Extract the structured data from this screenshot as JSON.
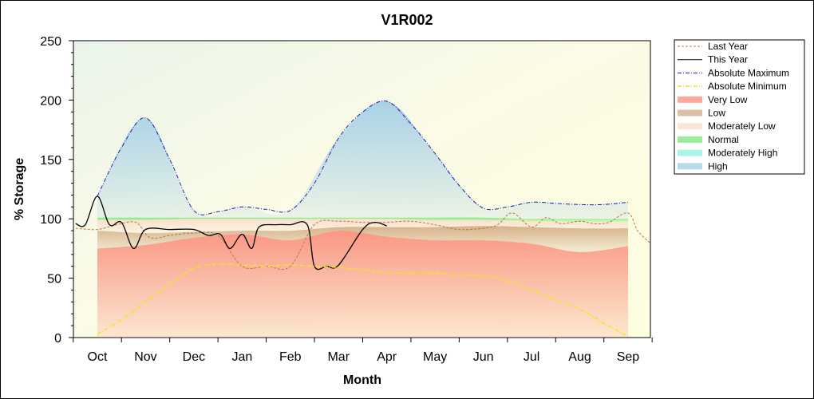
{
  "chart_data": {
    "type": "area",
    "title": "V1R002",
    "xlabel": "Month",
    "ylabel": "% Storage",
    "ylim": [
      0,
      250
    ],
    "yticks": [
      0,
      50,
      100,
      150,
      200,
      250
    ],
    "categories": [
      "Oct",
      "Nov",
      "Dec",
      "Jan",
      "Feb",
      "Mar",
      "Apr",
      "May",
      "Jun",
      "Jul",
      "Aug",
      "Sep"
    ],
    "grid": false,
    "legend_position": "right",
    "band_x": [
      0,
      1,
      2,
      3,
      4,
      5,
      6,
      7,
      8,
      9,
      10,
      11
    ],
    "bands": [
      {
        "name": "Very Low",
        "color": "#fa8c78",
        "lower": [
          0,
          0,
          0,
          0,
          0,
          0,
          0,
          0,
          0,
          0,
          0,
          0
        ],
        "upper": [
          75,
          78,
          84,
          87,
          82,
          90,
          85,
          82,
          82,
          79,
          72,
          77
        ]
      },
      {
        "name": "Low",
        "color": "#d2aa82",
        "lower": [
          75,
          78,
          84,
          87,
          82,
          90,
          85,
          82,
          82,
          79,
          72,
          77
        ],
        "upper": [
          90,
          88,
          89,
          90,
          90,
          93,
          93,
          93,
          94,
          93,
          92,
          92
        ]
      },
      {
        "name": "Moderately Low",
        "color": "#fadcc8",
        "lower": [
          90,
          88,
          89,
          90,
          90,
          93,
          93,
          93,
          94,
          93,
          92,
          92
        ],
        "upper": [
          99,
          99,
          100,
          100,
          100,
          100,
          100,
          99,
          99,
          98,
          97,
          97
        ]
      },
      {
        "name": "Normal",
        "color": "#78e678",
        "lower": [
          99,
          99,
          100,
          100,
          100,
          100,
          100,
          99,
          99,
          98,
          97,
          97
        ],
        "upper": [
          101,
          101,
          101,
          101,
          101,
          101,
          101,
          101,
          101,
          100,
          100,
          100
        ]
      },
      {
        "name": "Moderately High",
        "color": "#8cf0dc",
        "lower": [
          101,
          101,
          101,
          101,
          101,
          101,
          101,
          101,
          101,
          100,
          100,
          100
        ],
        "upper": [
          101,
          101,
          101,
          101,
          101,
          101,
          101,
          101,
          101,
          100,
          100,
          100
        ]
      },
      {
        "name": "High",
        "color": "#a0cde6",
        "lower": [
          101,
          101,
          101,
          101,
          101,
          101,
          101,
          101,
          101,
          100,
          100,
          100
        ],
        "upper": [
          119,
          185,
          107,
          110,
          107,
          168,
          199,
          155,
          109,
          114,
          112,
          114
        ]
      }
    ],
    "series": [
      {
        "name": "Last Year",
        "color": "#b4783c",
        "style": "dashed",
        "x": [
          -0.45,
          0,
          0.4,
          0.8,
          1.1,
          1.5,
          2,
          2.5,
          3,
          3.5,
          4,
          4.5,
          5,
          5.5,
          6,
          6.5,
          7,
          7.5,
          8,
          8.3,
          8.6,
          9,
          9.3,
          9.6,
          10,
          10.3,
          10.6,
          11,
          11.2,
          11.45
        ],
        "y": [
          92,
          91,
          95,
          97,
          84,
          86,
          88,
          86,
          60,
          60,
          60,
          95,
          98,
          97,
          97,
          98,
          95,
          91,
          92,
          95,
          105,
          93,
          101,
          96,
          98,
          96,
          97,
          105,
          90,
          80
        ]
      },
      {
        "name": "This Year",
        "color": "#000000",
        "style": "solid",
        "x": [
          -0.45,
          -0.25,
          0,
          0.25,
          0.5,
          0.75,
          1,
          1.5,
          2,
          2.3,
          2.55,
          2.75,
          3,
          3.2,
          3.35,
          3.7,
          4,
          4.35,
          4.5,
          4.75,
          5,
          5.5,
          5.75,
          6
        ],
        "y": [
          96,
          95,
          119,
          95,
          97,
          75,
          91,
          91,
          91,
          86,
          87,
          75,
          87,
          75,
          93,
          95,
          95,
          95,
          60,
          60,
          61,
          91,
          97,
          94
        ]
      },
      {
        "name": "Absolute Maximum",
        "color": "#1e1eb4",
        "style": "dashdot",
        "x": [
          0,
          0.5,
          1,
          1.5,
          2,
          2.5,
          3,
          3.5,
          4,
          4.5,
          5,
          5.5,
          6,
          6.5,
          7,
          7.5,
          8,
          8.5,
          9,
          9.5,
          10,
          10.5,
          11
        ],
        "y": [
          119,
          160,
          185,
          150,
          107,
          106,
          110,
          108,
          107,
          130,
          168,
          190,
          199,
          180,
          155,
          128,
          109,
          110,
          114,
          113,
          112,
          112,
          114
        ]
      },
      {
        "name": "Absolute Minimum",
        "color": "#f0e61e",
        "style": "dashdot",
        "x": [
          0,
          0.5,
          1,
          1.5,
          2,
          2.5,
          3,
          3.5,
          4,
          4.5,
          5,
          5.5,
          6,
          6.5,
          7,
          7.5,
          8,
          8.5,
          9,
          9.5,
          10,
          10.5,
          11
        ],
        "y": [
          3,
          15,
          30,
          45,
          58,
          62,
          61,
          60,
          61,
          60,
          59,
          57,
          55,
          54,
          54,
          53,
          52,
          48,
          40,
          32,
          24,
          12,
          1
        ]
      }
    ],
    "legend": [
      {
        "name": "Last Year",
        "kind": "line",
        "color": "#b4783c",
        "style": "dashed"
      },
      {
        "name": "This Year",
        "kind": "line",
        "color": "#000000",
        "style": "solid"
      },
      {
        "name": "Absolute Maximum",
        "kind": "line",
        "color": "#1e1eb4",
        "style": "dashdot"
      },
      {
        "name": "Absolute Minimum",
        "kind": "line",
        "color": "#f0e61e",
        "style": "dashdot"
      },
      {
        "name": "Very Low",
        "kind": "area",
        "color": "#fa8c78"
      },
      {
        "name": "Low",
        "kind": "area",
        "color": "#d2aa82"
      },
      {
        "name": "Moderately Low",
        "kind": "area",
        "color": "#fadcc8"
      },
      {
        "name": "Normal",
        "kind": "area",
        "color": "#78e678"
      },
      {
        "name": "Moderately High",
        "kind": "area",
        "color": "#8cf0dc"
      },
      {
        "name": "High",
        "kind": "area",
        "color": "#a0cde6"
      }
    ]
  }
}
